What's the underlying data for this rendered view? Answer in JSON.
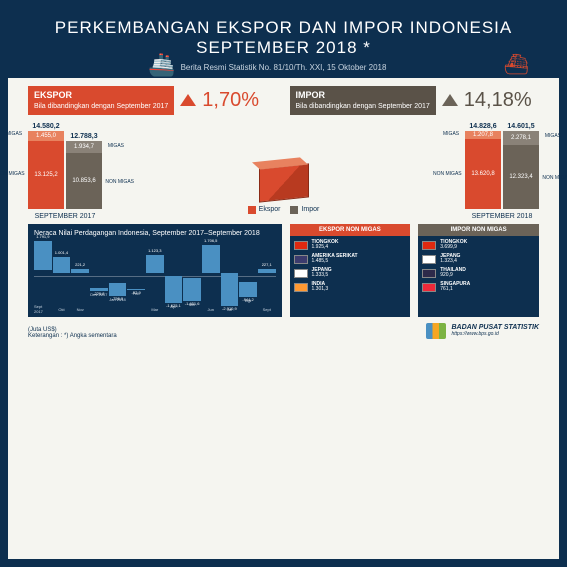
{
  "header": {
    "title_line1": "PERKEMBANGAN EKSPOR DAN IMPOR INDONESIA",
    "title_line2": "SEPTEMBER 2018 *",
    "subtitle": "Berita Resmi Statistik No. 81/10/Th. XXI, 15 Oktober 2018"
  },
  "ekspor_stat": {
    "head": "EKSPOR",
    "desc": "Bila dibandingkan dengan September 2017",
    "pct": "1,70%"
  },
  "impor_stat": {
    "head": "IMPOR",
    "desc": "Bila dibandingkan dengan September 2017",
    "pct": "14,18%"
  },
  "bars": {
    "colors": {
      "ekspor": "#d94a2e",
      "impor": "#6b6358",
      "migas_e": "#e8825f",
      "migas_i": "#8a8278"
    },
    "sep2017": {
      "ekspor_total": "14.580,2",
      "ekspor_migas": "1.455,0",
      "ekspor_non": "13.125,2",
      "impor_total": "12.788,3",
      "impor_migas": "1.934,7",
      "impor_non": "10.853,6",
      "label": "SEPTEMBER 2017",
      "heights": {
        "e_mig": 10,
        "e_non": 68,
        "i_mig": 12,
        "i_non": 56
      }
    },
    "sep2018": {
      "ekspor_total": "14.828,6",
      "ekspor_migas": "1.207,8",
      "ekspor_non": "13.620,8",
      "impor_total": "14.601,5",
      "impor_migas": "2.278,1",
      "impor_non": "12.323,4",
      "label": "SEPTEMBER 2018",
      "heights": {
        "e_mig": 8,
        "e_non": 70,
        "i_mig": 14,
        "i_non": 64
      }
    },
    "side_labels": {
      "migas": "MIGAS",
      "non": "NON MIGAS"
    }
  },
  "legend": {
    "ekspor": "Ekspor",
    "impor": "Impor"
  },
  "trade_chart": {
    "title": "Neraca Nilai Perdagangan Indonesia, September 2017–September 2018",
    "color": "#4a90c2",
    "months": [
      {
        "lbl": "Sept 2017",
        "val": 1791.9,
        "txt": "1.791,9"
      },
      {
        "lbl": "Okt",
        "val": 1001.4,
        "txt": "1.001,4"
      },
      {
        "lbl": "Nov",
        "val": 221.2,
        "txt": "221,2"
      },
      {
        "lbl": "Des 2017",
        "val": -220.8,
        "txt": "-220,8"
      },
      {
        "lbl": "Jan 2018",
        "val": -756.0,
        "txt": "-756,0"
      },
      {
        "lbl": "Feb",
        "val": -52.9,
        "txt": "-52,9"
      },
      {
        "lbl": "Mar",
        "val": 1123.3,
        "txt": "1.123,3"
      },
      {
        "lbl": "Apr",
        "val": -1625.1,
        "txt": "-1.625,1"
      },
      {
        "lbl": "Mei",
        "val": -1451.6,
        "txt": "-1.451,6"
      },
      {
        "lbl": "Jun",
        "val": 1706.5,
        "txt": "1.706,5"
      },
      {
        "lbl": "Jul",
        "val": -2010.9,
        "txt": "-2.010,9"
      },
      {
        "lbl": "Agt",
        "val": -944.2,
        "txt": "-944,2"
      },
      {
        "lbl": "Sept",
        "val": 227.1,
        "txt": "227,1"
      }
    ],
    "scale": 2010.9
  },
  "ekspor_countries": {
    "head": "EKSPOR NON MIGAS",
    "rows": [
      {
        "name": "TIONGKOK",
        "val": "1.925,4",
        "flag": "#de2910"
      },
      {
        "name": "AMERIKA SERIKAT",
        "val": "1.485,5",
        "flag": "#3c3b6e"
      },
      {
        "name": "JEPANG",
        "val": "1.333,5",
        "flag": "#ffffff"
      },
      {
        "name": "INDIA",
        "val": "1.301,3",
        "flag": "#ff9933"
      }
    ]
  },
  "impor_countries": {
    "head": "IMPOR NON MIGAS",
    "rows": [
      {
        "name": "TIONGKOK",
        "val": "3.699,9",
        "flag": "#de2910"
      },
      {
        "name": "JEPANG",
        "val": "1.323,4",
        "flag": "#ffffff"
      },
      {
        "name": "THAILAND",
        "val": "920,9",
        "flag": "#2d2a4a"
      },
      {
        "name": "SINGAPURA",
        "val": "761,1",
        "flag": "#ed2939"
      }
    ]
  },
  "footer": {
    "unit": "(Juta US$)",
    "note": "Keterangan : *) Angka sementara",
    "org": "BADAN PUSAT STATISTIK",
    "url": "https://www.bps.go.id"
  }
}
